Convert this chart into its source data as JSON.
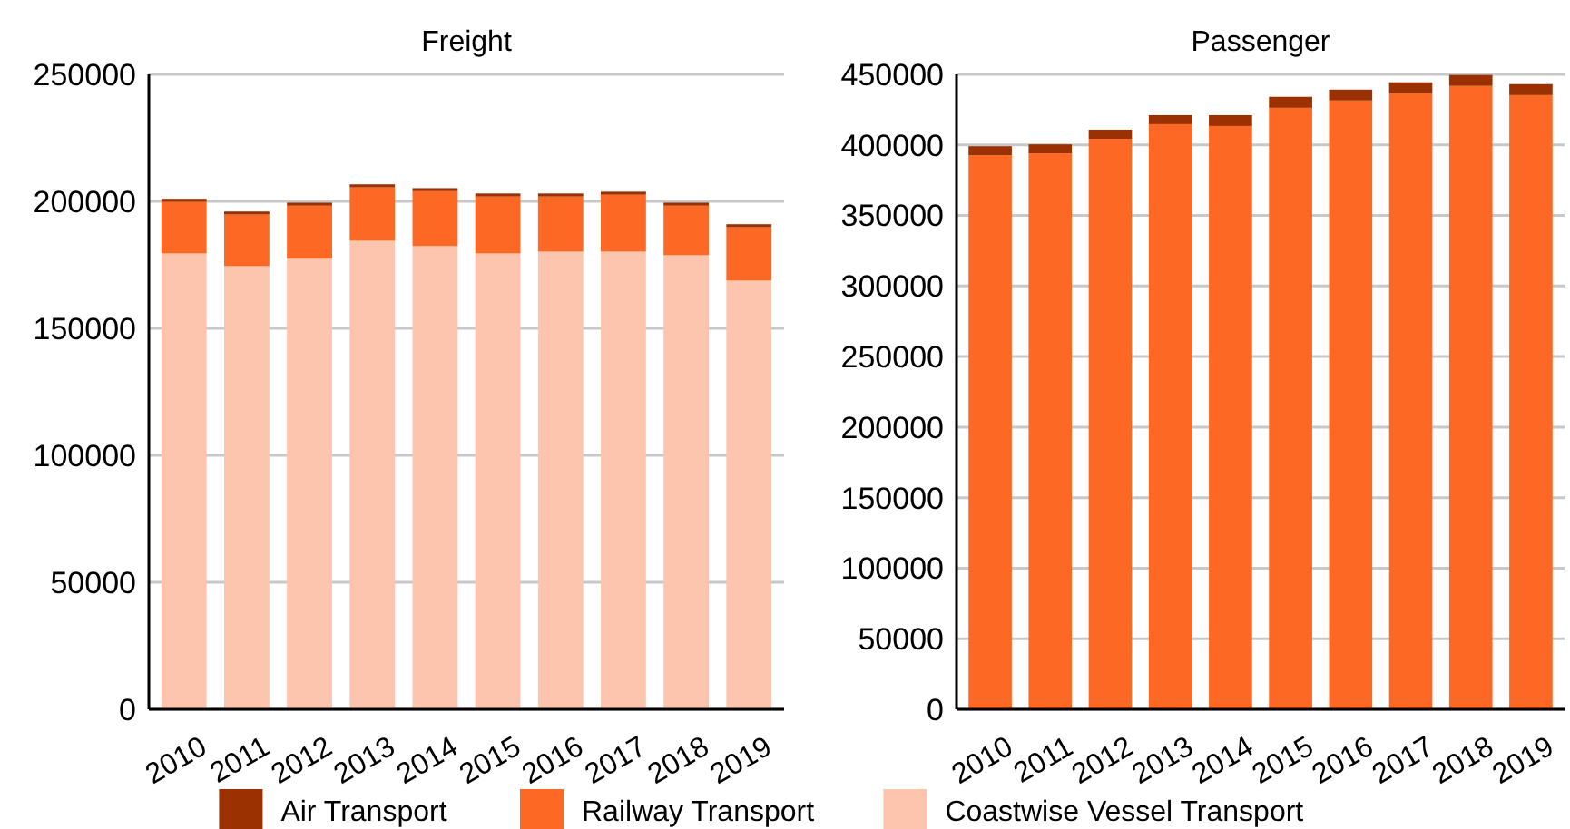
{
  "chart_data": [
    {
      "type": "bar",
      "title": "Freight",
      "stacked": true,
      "categories": [
        "2010",
        "2011",
        "2012",
        "2013",
        "2014",
        "2015",
        "2016",
        "2017",
        "2018",
        "2019"
      ],
      "series": [
        {
          "name": "Coastwise Vessel Transport",
          "color": "#fdc5ae",
          "values": [
            179500,
            174500,
            177400,
            184500,
            182400,
            179500,
            180200,
            180200,
            178800,
            168800
          ]
        },
        {
          "name": "Railway Transport",
          "color": "#fd6925",
          "values": [
            20300,
            20300,
            20900,
            21000,
            21600,
            22400,
            21700,
            22400,
            19500,
            21000
          ]
        },
        {
          "name": "Air Transport",
          "color": "#9b3100",
          "values": [
            1200,
            1200,
            1200,
            1200,
            1200,
            1200,
            1200,
            1200,
            1200,
            1200
          ]
        }
      ],
      "ylim": [
        0,
        250000
      ],
      "yticks": [
        0,
        50000,
        100000,
        150000,
        200000,
        250000
      ],
      "grid": "y",
      "legend": "bottom"
    },
    {
      "type": "bar",
      "title": "Passenger",
      "stacked": true,
      "categories": [
        "2010",
        "2011",
        "2012",
        "2013",
        "2014",
        "2015",
        "2016",
        "2017",
        "2018",
        "2019"
      ],
      "series": [
        {
          "name": "Railway Transport",
          "color": "#fd6925",
          "values": [
            392700,
            394000,
            404300,
            414700,
            413400,
            426300,
            431500,
            436600,
            441800,
            435300
          ]
        },
        {
          "name": "Air Transport",
          "color": "#9b3100",
          "values": [
            6400,
            6400,
            6500,
            6400,
            7700,
            7800,
            7700,
            7800,
            7800,
            7800
          ]
        }
      ],
      "ylim": [
        0,
        450000
      ],
      "yticks": [
        0,
        50000,
        100000,
        150000,
        200000,
        250000,
        300000,
        350000,
        400000,
        450000
      ],
      "grid": "y",
      "legend": "bottom"
    }
  ]
}
